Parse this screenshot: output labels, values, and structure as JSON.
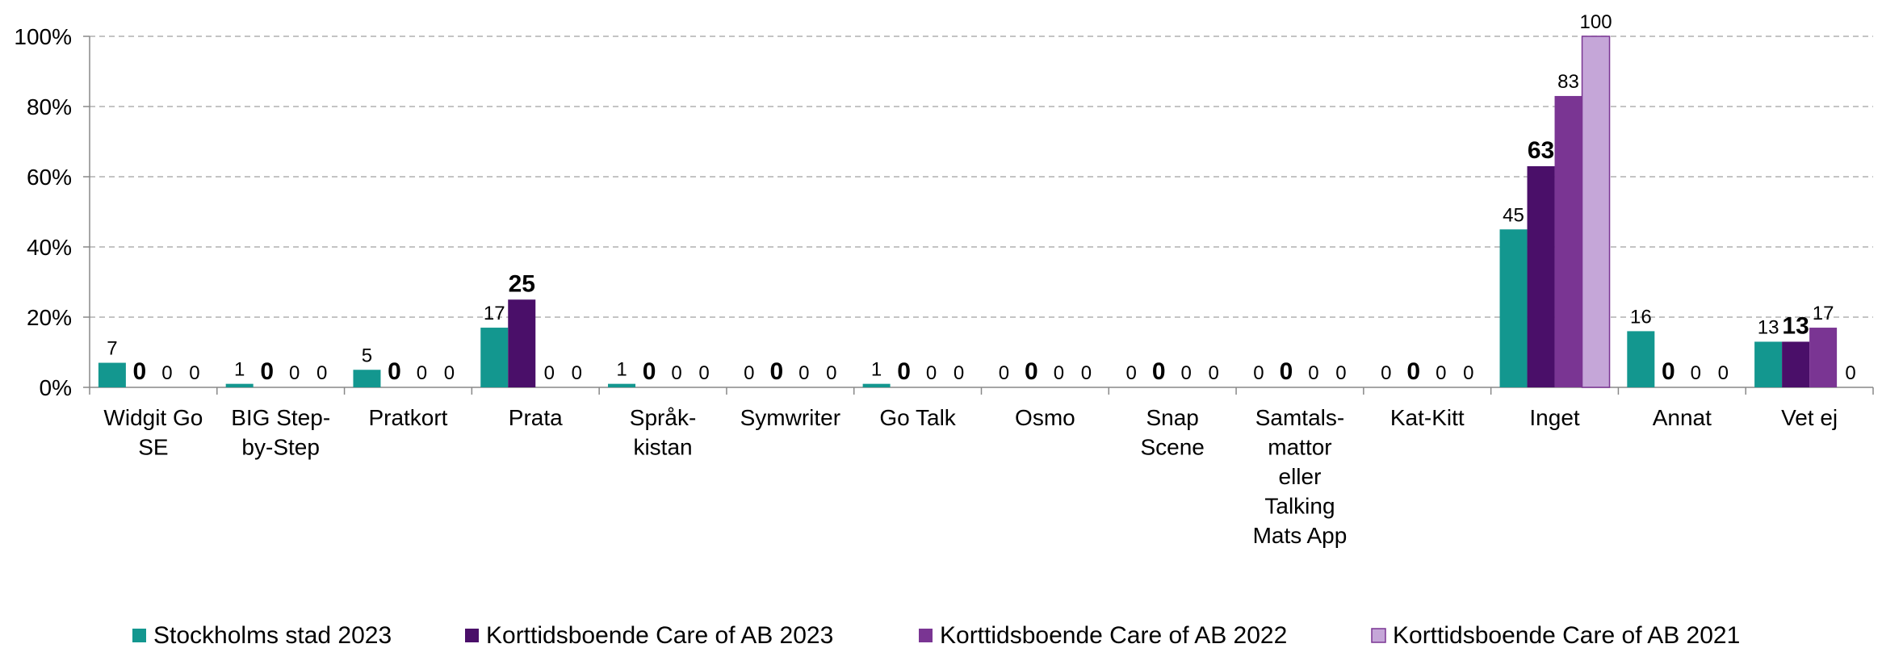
{
  "chart_data": {
    "type": "bar",
    "categories": [
      "Widgit Go\nSE",
      "BIG Step-\nby-Step",
      "Pratkort",
      "Prata",
      "Språk-\nkistan",
      "Symwriter",
      "Go Talk",
      "Osmo",
      "Snap\nScene",
      "Samtals-\nmattor\neller\nTalking\nMats App",
      "Kat-Kitt",
      "Inget",
      "Annat",
      "Vet ej"
    ],
    "series": [
      {
        "name": "Stockholms stad 2023",
        "color": "#13978f",
        "values": [
          7,
          1,
          5,
          17,
          1,
          0,
          1,
          0,
          0,
          0,
          0,
          45,
          16,
          13
        ]
      },
      {
        "name": "Korttidsboende Care of AB 2023",
        "color": "#4a0f69",
        "values": [
          0,
          0,
          0,
          25,
          0,
          0,
          0,
          0,
          0,
          0,
          0,
          63,
          0,
          13
        ]
      },
      {
        "name": "Korttidsboende Care of AB 2022",
        "color": "#7a3593",
        "values": [
          0,
          0,
          0,
          0,
          0,
          0,
          0,
          0,
          0,
          0,
          0,
          83,
          0,
          17
        ]
      },
      {
        "name": "Korttidsboende Care of AB 2021",
        "color": "#c5a6d8",
        "values": [
          0,
          0,
          0,
          0,
          0,
          0,
          0,
          0,
          0,
          0,
          0,
          100,
          0,
          0
        ]
      }
    ],
    "ylim": [
      0,
      100
    ],
    "yticks": [
      {
        "value": 0,
        "label": "0%"
      },
      {
        "value": 20,
        "label": "20%"
      },
      {
        "value": 40,
        "label": "40%"
      },
      {
        "value": 60,
        "label": "60%"
      },
      {
        "value": 80,
        "label": "80%"
      },
      {
        "value": 100,
        "label": "100%"
      }
    ],
    "grid": true,
    "legend": "bottom"
  }
}
